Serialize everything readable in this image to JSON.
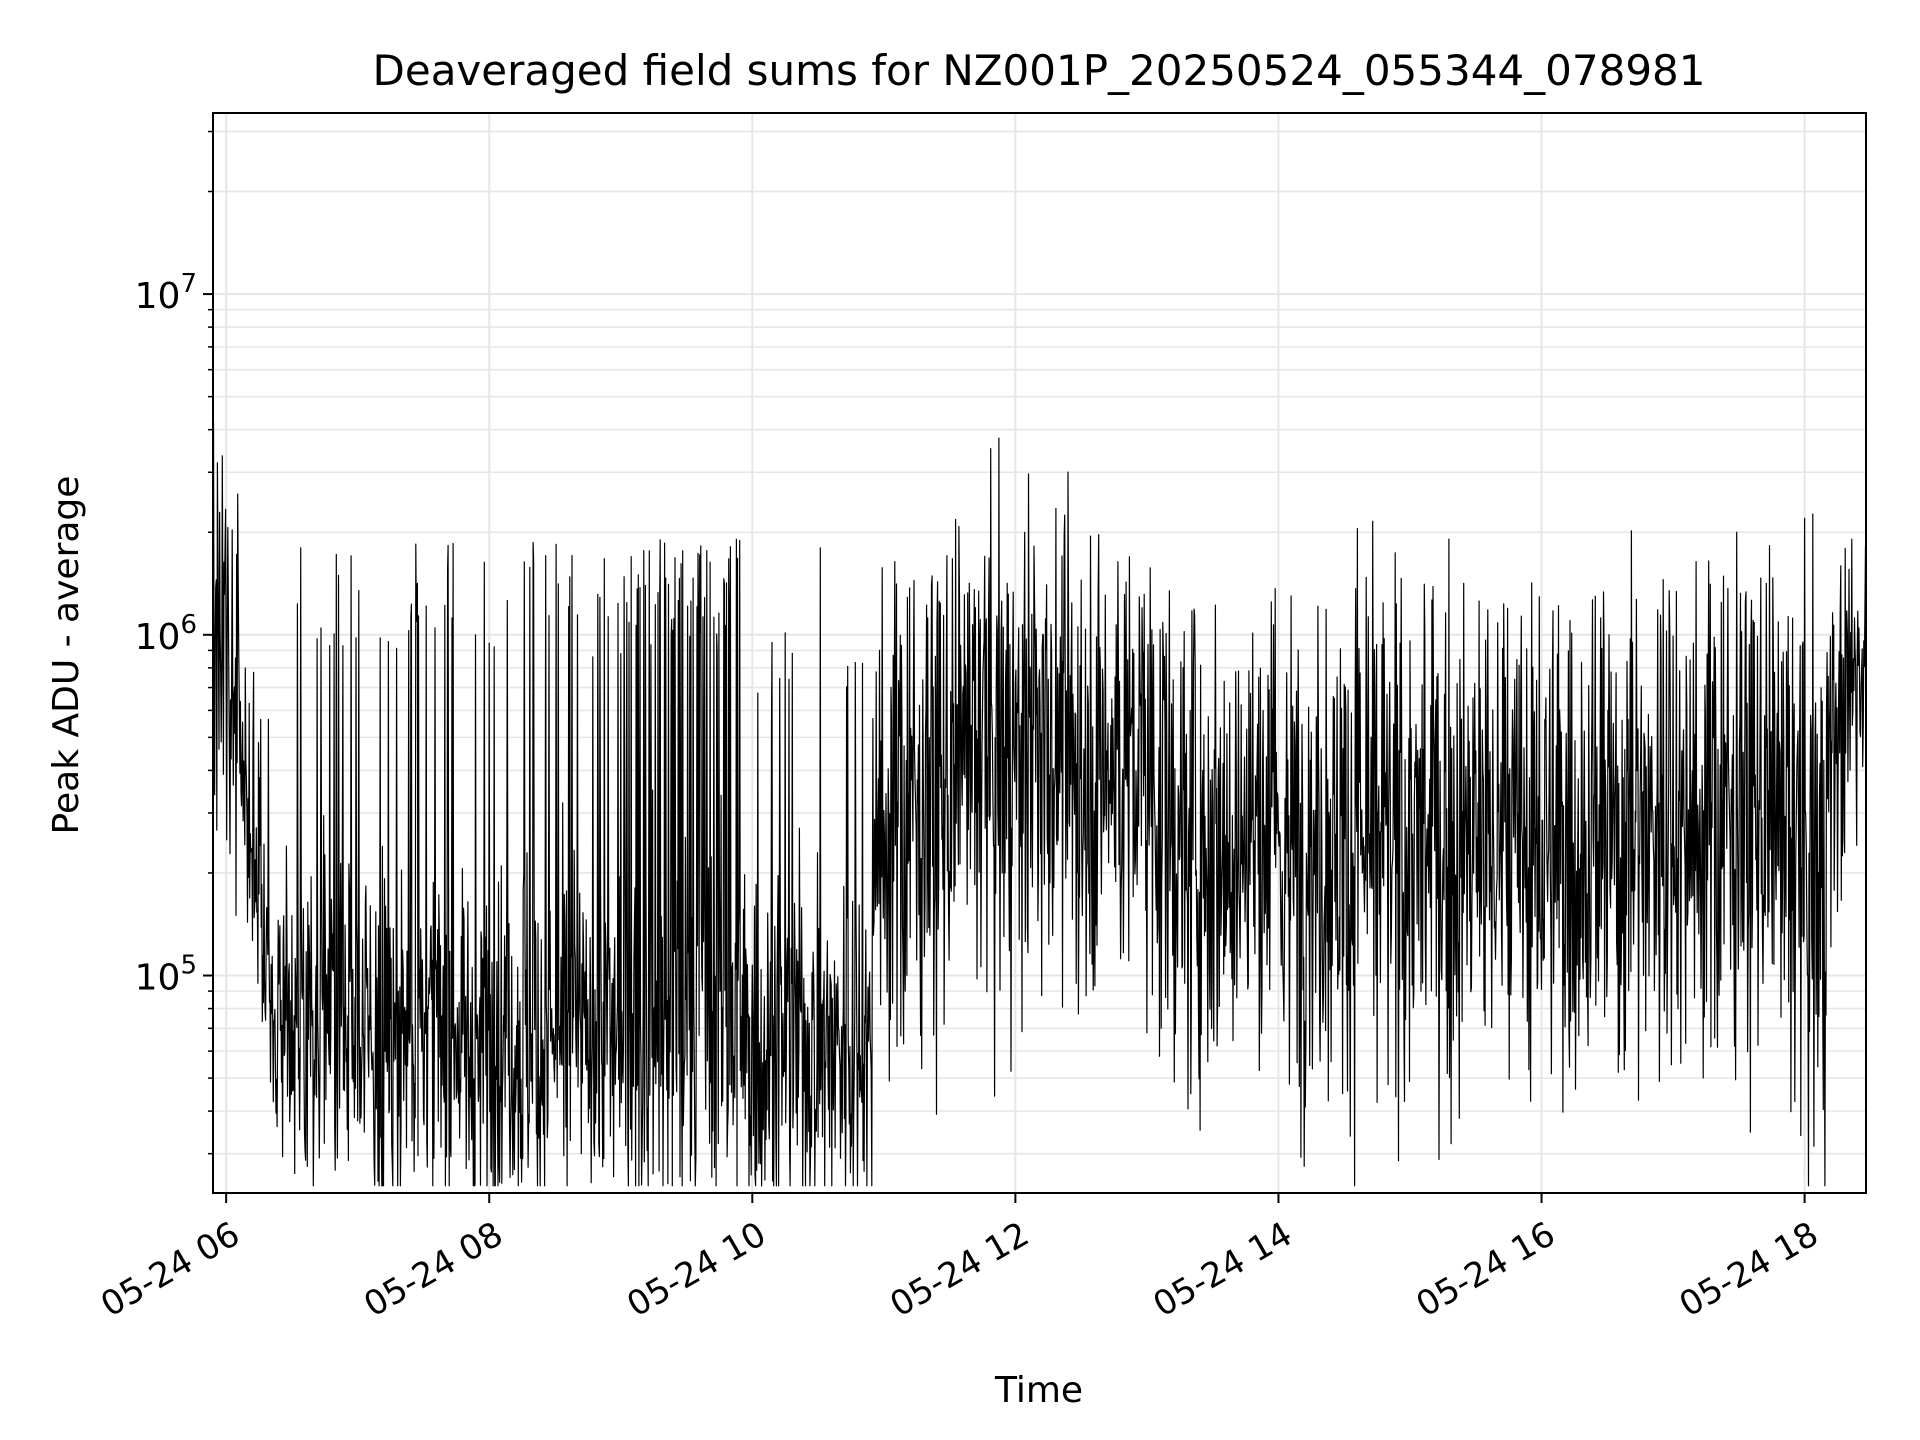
{
  "chart_data": {
    "type": "line",
    "title": "Deaveraged field sums for NZ001P_20250524_055344_078981",
    "xlabel": "Time",
    "ylabel": "Peak ADU - average",
    "yscale": "log",
    "xlim": [
      "2025-05-24T05:54",
      "2025-05-24T18:28"
    ],
    "ylim": [
      23000,
      34000000
    ],
    "grid": true,
    "line_color": "#000000",
    "grid_color": "#e6e6e6",
    "x_ticks": [
      {
        "t": "2025-05-24T06:00",
        "label": "05-24 06"
      },
      {
        "t": "2025-05-24T08:00",
        "label": "05-24 08"
      },
      {
        "t": "2025-05-24T10:00",
        "label": "05-24 10"
      },
      {
        "t": "2025-05-24T12:00",
        "label": "05-24 12"
      },
      {
        "t": "2025-05-24T14:00",
        "label": "05-24 14"
      },
      {
        "t": "2025-05-24T16:00",
        "label": "05-24 16"
      },
      {
        "t": "2025-05-24T18:00",
        "label": "05-24 18"
      }
    ],
    "y_ticks": [
      {
        "value": 100000,
        "base": "10",
        "exp": "5"
      },
      {
        "value": 1000000,
        "base": "10",
        "exp": "6"
      },
      {
        "value": 10000000,
        "base": "10",
        "exp": "7"
      }
    ],
    "series": [
      {
        "style": "noisy",
        "segments": [
          {
            "t0": "2025-05-24T05:54",
            "t1": "2025-05-24T06:05",
            "from": 1300000,
            "to": 500000,
            "noise": 0.3
          },
          {
            "t0": "2025-05-24T06:05",
            "t1": "2025-05-24T06:20",
            "from": 500000,
            "to": 120000,
            "noise": 0.3
          },
          {
            "t0": "2025-05-24T06:20",
            "t1": "2025-05-24T07:00",
            "from": 85000,
            "to": 70000,
            "noise": 0.25,
            "spikes": 0.08,
            "spike_level": 1500000
          },
          {
            "t0": "2025-05-24T07:00",
            "t1": "2025-05-24T09:00",
            "from": 65000,
            "to": 65000,
            "noise": 0.25,
            "spikes": 0.1,
            "spike_level": 1500000
          },
          {
            "t0": "2025-05-24T09:00",
            "t1": "2025-05-24T09:55",
            "from": 70000,
            "to": 65000,
            "noise": 0.3,
            "spikes": 0.2,
            "spike_level": 1500000
          },
          {
            "t0": "2025-05-24T09:55",
            "t1": "2025-05-24T10:55",
            "from": 60000,
            "to": 65000,
            "noise": 0.25,
            "spikes": 0.06,
            "spike_level": 800000
          },
          {
            "t0": "2025-05-24T10:55",
            "t1": "2025-05-24T12:00",
            "from": 260000,
            "to": 450000,
            "noise": 0.35,
            "spikes": 0.05,
            "spike_level": 1200000
          },
          {
            "t0": "2025-05-24T12:00",
            "t1": "2025-05-24T13:05",
            "from": 450000,
            "to": 400000,
            "noise": 0.35,
            "spikes": 0.05,
            "spike_level": 1300000
          },
          {
            "t0": "2025-05-24T13:05",
            "t1": "2025-05-24T14:30",
            "from": 260000,
            "to": 230000,
            "noise": 0.35,
            "spikes": 0.04,
            "spike_level": 1100000
          },
          {
            "t0": "2025-05-24T14:30",
            "t1": "2025-05-24T16:30",
            "from": 230000,
            "to": 230000,
            "noise": 0.35,
            "spikes": 0.04,
            "spike_level": 1200000
          },
          {
            "t0": "2025-05-24T16:30",
            "t1": "2025-05-24T17:45",
            "from": 260000,
            "to": 300000,
            "noise": 0.35,
            "spikes": 0.05,
            "spike_level": 1300000
          },
          {
            "t0": "2025-05-24T17:45",
            "t1": "2025-05-24T18:10",
            "from": 200000,
            "to": 180000,
            "noise": 0.4,
            "spikes": 0.05,
            "spike_level": 1000000
          },
          {
            "t0": "2025-05-24T18:10",
            "t1": "2025-05-24T18:28",
            "from": 400000,
            "to": 950000,
            "noise": 0.25
          }
        ],
        "peaks": [
          {
            "t": "2025-05-24T05:56",
            "value": 3200000
          },
          {
            "t": "2025-05-24T09:18",
            "value": 1900000
          },
          {
            "t": "2025-05-24T14:36",
            "value": 2050000
          },
          {
            "t": "2025-05-24T17:29",
            "value": 2000000
          },
          {
            "t": "2025-05-24T10:31",
            "value": 1800000
          },
          {
            "t": "2025-05-24T11:46",
            "value": 1700000
          }
        ],
        "dips": [
          {
            "t": "2025-05-24T07:52",
            "value": 33000
          },
          {
            "t": "2025-05-24T09:42",
            "value": 35000
          },
          {
            "t": "2025-05-24T13:20",
            "value": 45000
          },
          {
            "t": "2025-05-24T14:05",
            "value": 48000
          },
          {
            "t": "2025-05-24T16:35",
            "value": 52000
          },
          {
            "t": "2025-05-24T18:06",
            "value": 54000
          }
        ]
      }
    ]
  }
}
